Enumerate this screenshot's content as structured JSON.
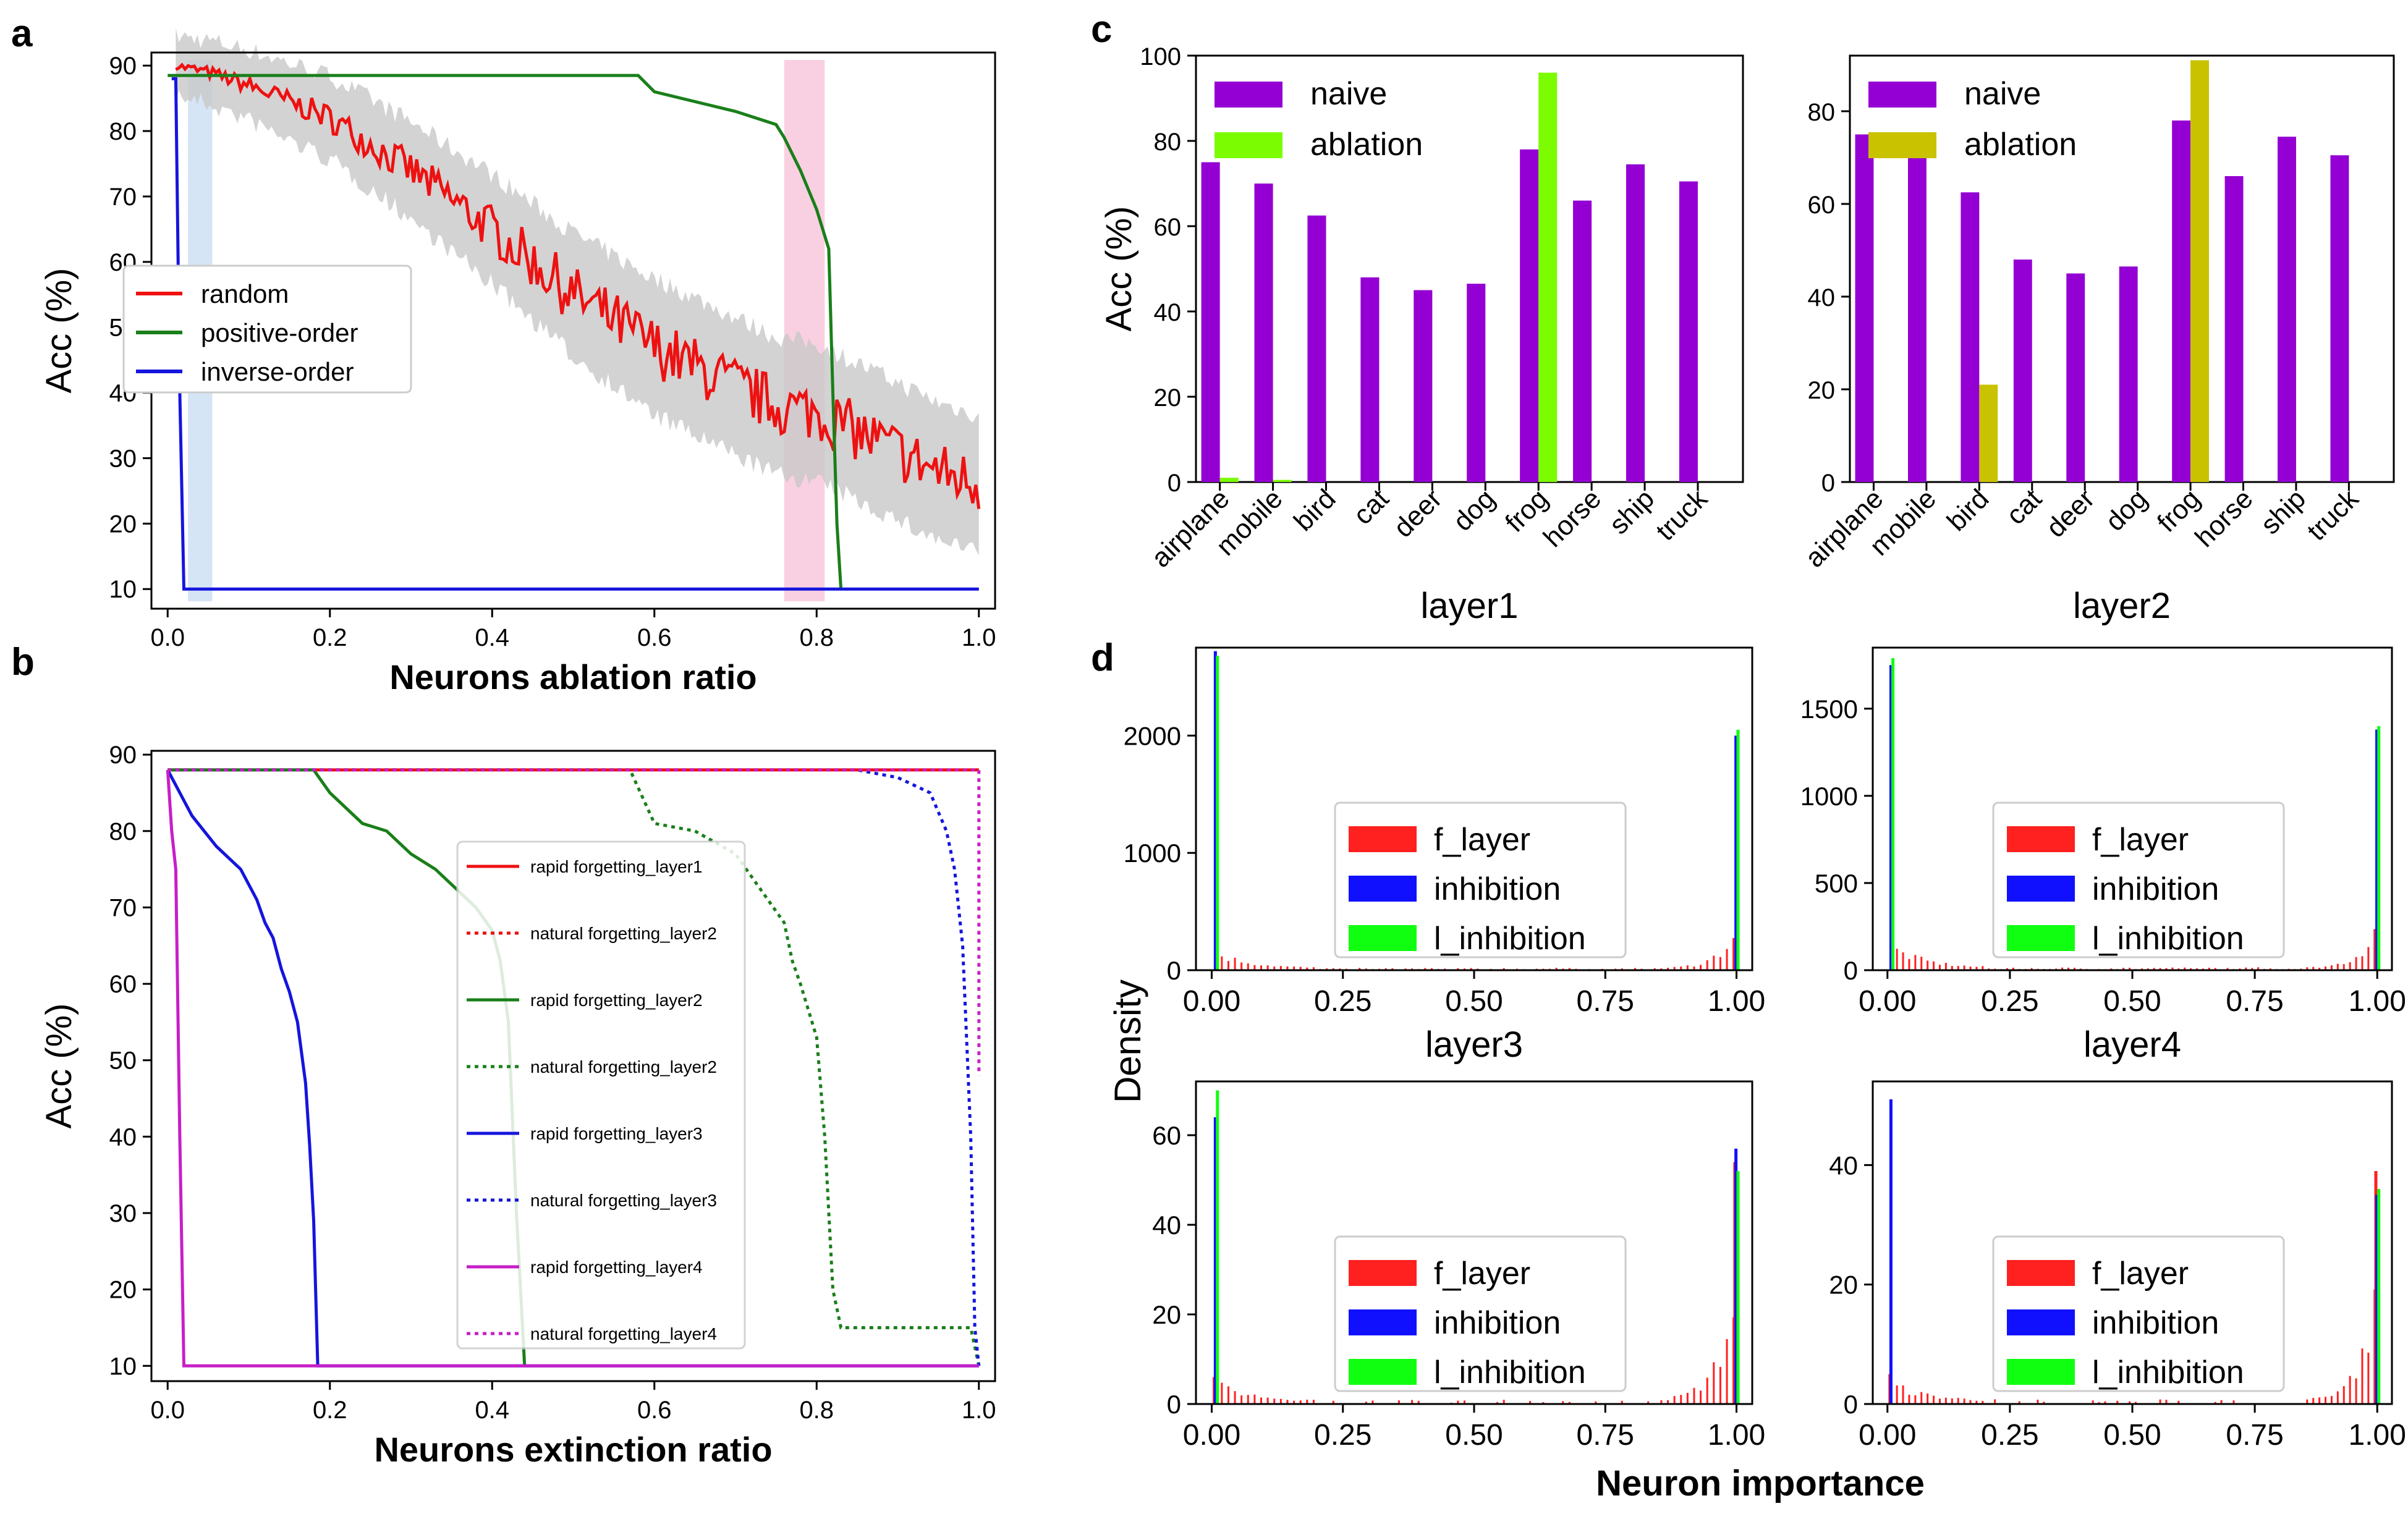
{
  "panel_labels": {
    "a": "a",
    "b": "b",
    "c": "c",
    "d": "d"
  },
  "colors": {
    "red": "#ee1111",
    "green": "#1a7f1a",
    "blue": "#1515dd",
    "magenta": "#c81ec8",
    "purple": "#9400d3",
    "lime": "#7cfc00",
    "olive": "#c8c200",
    "hist_red": "#ff2020",
    "hist_blue": "#1010ff",
    "hist_green": "#10ff10",
    "band_blue": "#cfe0f5",
    "band_pink": "#f8c8dc",
    "gray_band": "#c8c8c8"
  },
  "chart_data": [
    {
      "id": "a",
      "type": "line",
      "xlabel": "Neurons ablation ratio",
      "ylabel": "Acc (%)",
      "xlim": [
        -0.02,
        1.02
      ],
      "ylim": [
        7,
        92
      ],
      "xticks": [
        0.0,
        0.2,
        0.4,
        0.6,
        0.8,
        1.0
      ],
      "xtick_labels": [
        "0.0",
        "0.2",
        "0.4",
        "0.6",
        "0.8",
        "1.0"
      ],
      "yticks": [
        10,
        20,
        30,
        40,
        50,
        60,
        70,
        80,
        90
      ],
      "ytick_labels": [
        "10",
        "20",
        "30",
        "40",
        "50",
        "60",
        "70",
        "80",
        "90"
      ],
      "legend_position": "center-left",
      "highlight_bands": [
        {
          "x": [
            0.025,
            0.055
          ],
          "color": "band_blue"
        },
        {
          "x": [
            0.76,
            0.81
          ],
          "color": "band_pink"
        }
      ],
      "series": [
        {
          "name": "random",
          "color": "red",
          "style": "solid",
          "noisy": true,
          "shade": true,
          "x": [
            0.01,
            0.05,
            0.1,
            0.2,
            0.3,
            0.4,
            0.5,
            0.6,
            0.7,
            0.75,
            0.8,
            0.85,
            0.9,
            0.95,
            1.0
          ],
          "y": [
            90,
            89,
            87,
            82,
            74,
            65,
            55,
            47,
            41,
            38,
            37,
            34,
            31,
            28,
            26
          ]
        },
        {
          "name": "positive-order",
          "color": "green",
          "style": "solid",
          "x": [
            0.0,
            0.58,
            0.6,
            0.7,
            0.75,
            0.76,
            0.78,
            0.8,
            0.815,
            0.82,
            0.825,
            0.83
          ],
          "y": [
            88.5,
            88.5,
            86,
            83,
            81,
            79,
            74,
            68,
            62,
            40,
            20,
            10
          ]
        },
        {
          "name": "inverse-order",
          "color": "blue",
          "style": "solid",
          "x": [
            0.005,
            0.01,
            0.015,
            0.02,
            1.0
          ],
          "y": [
            88,
            88,
            40,
            10,
            10
          ]
        }
      ]
    },
    {
      "id": "b",
      "type": "line",
      "xlabel": "Neurons extinction ratio",
      "ylabel": "Acc (%)",
      "xlim": [
        -0.02,
        1.02
      ],
      "ylim": [
        8,
        90.5
      ],
      "xticks": [
        0.0,
        0.2,
        0.4,
        0.6,
        0.8,
        1.0
      ],
      "xtick_labels": [
        "0.0",
        "0.2",
        "0.4",
        "0.6",
        "0.8",
        "1.0"
      ],
      "yticks": [
        10,
        20,
        30,
        40,
        50,
        60,
        70,
        80,
        90
      ],
      "ytick_labels": [
        "10",
        "20",
        "30",
        "40",
        "50",
        "60",
        "70",
        "80",
        "90"
      ],
      "legend_position": "right",
      "series": [
        {
          "name": "rapid forgetting_layer1",
          "color": "red",
          "style": "solid",
          "x": [
            0.0,
            1.0
          ],
          "y": [
            88,
            88
          ]
        },
        {
          "name": "natural forgetting_layer2",
          "color": "red",
          "style": "dotted",
          "x": [
            0.0,
            1.0
          ],
          "y": [
            88,
            88
          ]
        },
        {
          "name": "rapid forgetting_layer2",
          "color": "green",
          "style": "solid",
          "x": [
            0.0,
            0.18,
            0.2,
            0.24,
            0.27,
            0.3,
            0.33,
            0.36,
            0.38,
            0.4,
            0.41,
            0.42,
            0.43,
            0.44
          ],
          "y": [
            88,
            88,
            85,
            81,
            80,
            77,
            75,
            72,
            70,
            67,
            63,
            55,
            30,
            10
          ]
        },
        {
          "name": "natural forgetting_layer2",
          "color": "green",
          "style": "dotted",
          "x": [
            0.0,
            0.57,
            0.6,
            0.65,
            0.7,
            0.74,
            0.76,
            0.77,
            0.78,
            0.8,
            0.81,
            0.82,
            0.83,
            0.86,
            0.99,
            1.0
          ],
          "y": [
            88,
            88,
            81,
            80,
            77,
            71,
            68,
            63,
            60,
            53,
            40,
            20,
            15,
            15,
            15,
            10
          ]
        },
        {
          "name": "rapid forgetting_layer3",
          "color": "blue",
          "style": "solid",
          "x": [
            0.0,
            0.01,
            0.03,
            0.06,
            0.09,
            0.11,
            0.12,
            0.13,
            0.14,
            0.15,
            0.16,
            0.17,
            0.175,
            0.18,
            0.185,
            1.0
          ],
          "y": [
            88,
            86,
            82,
            78,
            75,
            71,
            68,
            66,
            62,
            59,
            55,
            47,
            39,
            29,
            10,
            10
          ]
        },
        {
          "name": "natural forgetting_layer3",
          "color": "blue",
          "style": "dotted",
          "x": [
            0.0,
            0.85,
            0.9,
            0.94,
            0.96,
            0.97,
            0.98,
            0.99,
            0.995,
            1.0
          ],
          "y": [
            88,
            88,
            87,
            85,
            80,
            75,
            65,
            40,
            15,
            10
          ]
        },
        {
          "name": "rapid forgetting_layer4",
          "color": "magenta",
          "style": "solid",
          "x": [
            0.0,
            0.005,
            0.01,
            0.015,
            0.02,
            1.0
          ],
          "y": [
            88,
            80,
            75,
            40,
            10,
            10
          ]
        },
        {
          "name": "natural forgetting_layer4",
          "color": "magenta",
          "style": "dotted",
          "x": [
            0.0,
            0.99,
            1.0,
            1.0
          ],
          "y": [
            88,
            88,
            88,
            48
          ]
        }
      ]
    },
    {
      "id": "c-layer1",
      "type": "bar",
      "title": "layer1",
      "ylabel": "Acc (%)",
      "ylim": [
        0,
        100
      ],
      "yticks": [
        0,
        20,
        40,
        60,
        80,
        100
      ],
      "ytick_labels": [
        "0",
        "20",
        "40",
        "60",
        "80",
        "100"
      ],
      "legend_position": "top-left",
      "categories": [
        "airplane",
        "mobile",
        "bird",
        "cat",
        "deer",
        "dog",
        "frog",
        "horse",
        "ship",
        "truck"
      ],
      "series": [
        {
          "name": "naive",
          "color": "purple",
          "values": [
            75,
            70,
            62.5,
            48,
            45,
            46.5,
            78,
            66,
            74.5,
            70.5
          ]
        },
        {
          "name": "ablation",
          "color": "lime",
          "values": [
            1,
            0.5,
            0,
            0,
            0,
            0,
            96,
            0,
            0,
            0
          ]
        }
      ]
    },
    {
      "id": "c-layer2",
      "type": "bar",
      "title": "layer2",
      "ylabel": "",
      "ylim": [
        0,
        92
      ],
      "yticks": [
        0,
        20,
        40,
        60,
        80
      ],
      "ytick_labels": [
        "0",
        "20",
        "40",
        "60",
        "80"
      ],
      "legend_position": "top-left",
      "categories": [
        "airplane",
        "mobile",
        "bird",
        "cat",
        "deer",
        "dog",
        "frog",
        "horse",
        "ship",
        "truck"
      ],
      "series": [
        {
          "name": "naive",
          "color": "purple",
          "values": [
            75,
            70,
            62.5,
            48,
            45,
            46.5,
            78,
            66,
            74.5,
            70.5
          ]
        },
        {
          "name": "ablation",
          "color": "olive",
          "values": [
            0,
            0,
            21,
            0,
            0,
            0,
            91,
            0,
            0,
            0
          ]
        }
      ]
    },
    {
      "id": "d-1",
      "type": "histogram",
      "title": "layer3",
      "ylim": [
        0,
        2750
      ],
      "yticks": [
        0,
        1000,
        2000
      ],
      "ytick_labels": [
        "0",
        "1000",
        "2000"
      ],
      "spikes": {
        "red": [
          0.0,
          0.0
        ],
        "blue": [
          2720,
          2000
        ],
        "green": [
          2680,
          2050
        ]
      },
      "red_profile": {
        "left": 140,
        "mid": 12,
        "right": 300
      },
      "legend_position": "center"
    },
    {
      "id": "d-2",
      "type": "histogram",
      "title": "layer4",
      "ylim": [
        0,
        1850
      ],
      "yticks": [
        0,
        500,
        1000,
        1500
      ],
      "ytick_labels": [
        "0",
        "500",
        "1000",
        "1500"
      ],
      "spikes": {
        "red": [
          0.0,
          0.0
        ],
        "blue": [
          1750,
          1380
        ],
        "green": [
          1790,
          1400
        ]
      },
      "red_profile": {
        "left": 130,
        "mid": 10,
        "right": 220
      },
      "legend_position": "center"
    },
    {
      "id": "d-3",
      "type": "histogram",
      "title": "",
      "ylim": [
        0,
        72
      ],
      "yticks": [
        0,
        20,
        40,
        60
      ],
      "ytick_labels": [
        "0",
        "20",
        "40",
        "60"
      ],
      "spikes": {
        "red": [
          6,
          54
        ],
        "blue": [
          64,
          57
        ],
        "green": [
          70,
          52
        ]
      },
      "red_profile": {
        "left": 4,
        "mid": 0.6,
        "right": 22
      },
      "legend_position": "center"
    },
    {
      "id": "d-4",
      "type": "histogram",
      "title": "",
      "ylim": [
        0,
        54
      ],
      "yticks": [
        0,
        20,
        40
      ],
      "ytick_labels": [
        "0",
        "20",
        "40"
      ],
      "spikes": {
        "red": [
          5,
          39
        ],
        "blue": [
          51,
          35
        ],
        "green": [
          0,
          36
        ]
      },
      "red_profile": {
        "left": 3,
        "mid": 0.5,
        "right": 16
      },
      "legend_position": "center"
    }
  ],
  "histogram_common": {
    "xticks": [
      0.0,
      0.25,
      0.5,
      0.75,
      1.0
    ],
    "xtick_labels": [
      "0.00",
      "0.25",
      "0.50",
      "0.75",
      "1.00"
    ],
    "legend": [
      "f_layer",
      "inhibition",
      "l_inhibition"
    ],
    "ylabel": "Density",
    "xlabel": "Neuron importance"
  }
}
